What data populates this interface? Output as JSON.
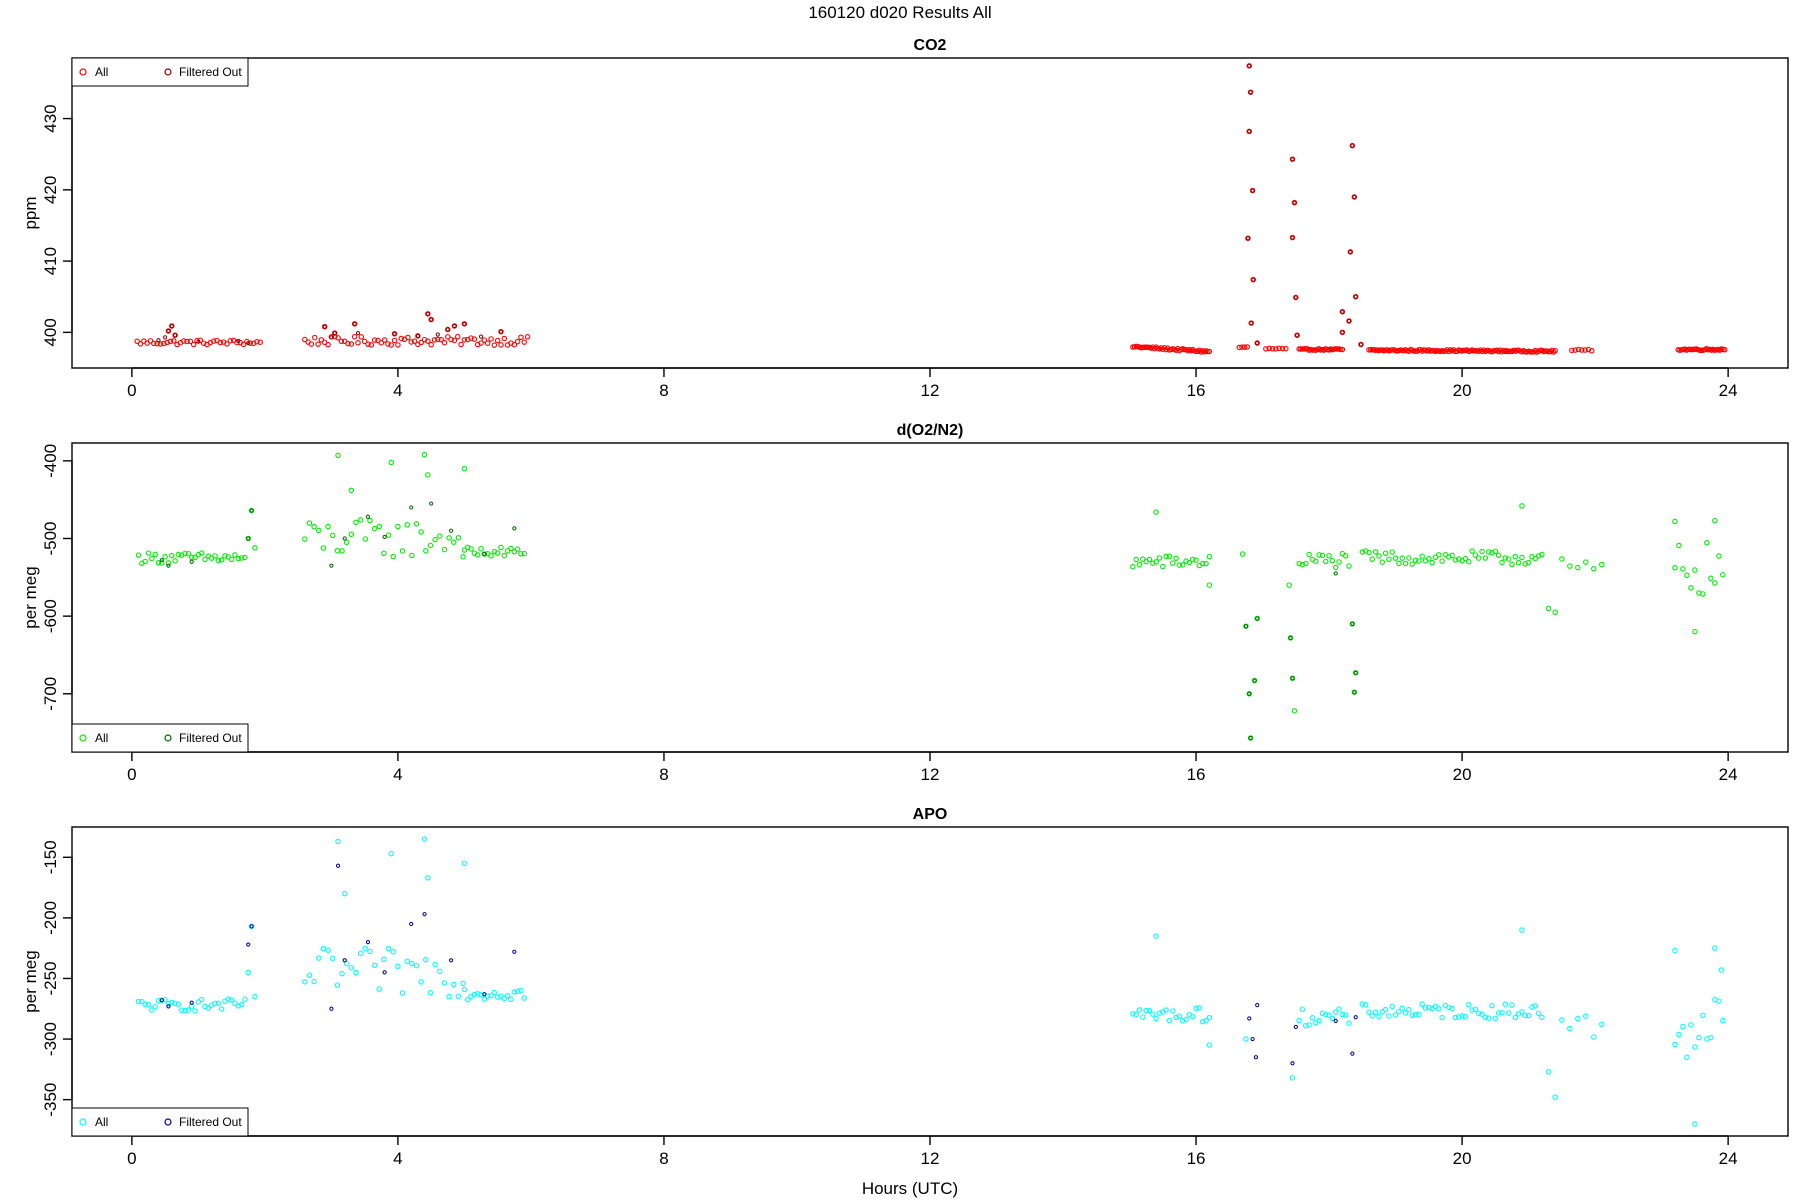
{
  "figure_title": "160120   d020   Results All",
  "xlabel": "Hours (UTC)",
  "legend_labels": [
    "All",
    "Filtered Out"
  ],
  "chart_data": [
    {
      "type": "scatter",
      "title": "CO2",
      "ylabel": "ppm",
      "xlim": [
        -0.9,
        24.9
      ],
      "ylim": [
        395,
        438.5
      ],
      "xticks": [
        0,
        4,
        8,
        12,
        16,
        20,
        24
      ],
      "yticks": [
        400,
        410,
        420,
        430
      ],
      "grid": false,
      "legend_position": "top-left",
      "colors": {
        "all": "#ff0000",
        "filtered": "#8b0000"
      },
      "segments_all": [
        {
          "from": 0.08,
          "to": 1.95,
          "step": 0.05,
          "base": 398.6,
          "jitter": 0.35
        },
        {
          "from": 2.6,
          "to": 5.95,
          "step": 0.05,
          "base": 398.8,
          "jitter": 0.6
        },
        {
          "from": 15.05,
          "to": 16.2,
          "step": 0.025,
          "base": 398.0,
          "slope": -0.7,
          "jitter": 0.15
        },
        {
          "from": 16.65,
          "to": 16.8,
          "step": 0.04,
          "base": 397.9,
          "jitter": 0.1
        },
        {
          "from": 17.05,
          "to": 17.35,
          "step": 0.05,
          "base": 397.7,
          "jitter": 0.1
        },
        {
          "from": 17.55,
          "to": 18.2,
          "step": 0.025,
          "base": 397.6,
          "jitter": 0.1
        },
        {
          "from": 18.6,
          "to": 21.4,
          "step": 0.025,
          "base": 397.5,
          "slope": -0.15,
          "jitter": 0.12
        },
        {
          "from": 21.65,
          "to": 21.95,
          "step": 0.05,
          "base": 397.5,
          "jitter": 0.1
        },
        {
          "from": 23.25,
          "to": 23.95,
          "step": 0.025,
          "base": 397.6,
          "jitter": 0.12
        }
      ],
      "points_all": [
        {
          "x": 0.55,
          "y": 400.2
        },
        {
          "x": 0.6,
          "y": 400.9
        },
        {
          "x": 0.65,
          "y": 399.6
        },
        {
          "x": 2.9,
          "y": 400.8
        },
        {
          "x": 3.05,
          "y": 399.9
        },
        {
          "x": 3.35,
          "y": 401.2
        },
        {
          "x": 3.95,
          "y": 399.8
        },
        {
          "x": 4.3,
          "y": 399.5
        },
        {
          "x": 4.45,
          "y": 402.6
        },
        {
          "x": 4.5,
          "y": 401.8
        },
        {
          "x": 4.75,
          "y": 400.4
        },
        {
          "x": 4.85,
          "y": 400.9
        },
        {
          "x": 5.0,
          "y": 401.2
        },
        {
          "x": 5.55,
          "y": 400.1
        },
        {
          "x": 16.8,
          "y": 437.4
        },
        {
          "x": 16.82,
          "y": 433.7
        },
        {
          "x": 16.8,
          "y": 428.2
        },
        {
          "x": 16.85,
          "y": 419.9
        },
        {
          "x": 16.78,
          "y": 413.2
        },
        {
          "x": 16.86,
          "y": 407.4
        },
        {
          "x": 16.83,
          "y": 401.3
        },
        {
          "x": 16.92,
          "y": 398.5
        },
        {
          "x": 17.45,
          "y": 424.3
        },
        {
          "x": 17.48,
          "y": 418.2
        },
        {
          "x": 17.45,
          "y": 413.3
        },
        {
          "x": 17.5,
          "y": 404.9
        },
        {
          "x": 17.52,
          "y": 399.6
        },
        {
          "x": 18.35,
          "y": 426.2
        },
        {
          "x": 18.38,
          "y": 419.0
        },
        {
          "x": 18.32,
          "y": 411.3
        },
        {
          "x": 18.4,
          "y": 405.0
        },
        {
          "x": 18.2,
          "y": 402.9
        },
        {
          "x": 18.2,
          "y": 400.0
        },
        {
          "x": 18.3,
          "y": 401.6
        },
        {
          "x": 18.48,
          "y": 398.3
        }
      ],
      "points_filtered": [
        {
          "x": 0.4,
          "y": 398.9
        },
        {
          "x": 0.5,
          "y": 399.3
        },
        {
          "x": 0.55,
          "y": 400.2
        },
        {
          "x": 0.6,
          "y": 400.9
        },
        {
          "x": 0.65,
          "y": 399.6
        },
        {
          "x": 1.0,
          "y": 398.7
        },
        {
          "x": 1.6,
          "y": 398.8
        },
        {
          "x": 1.75,
          "y": 398.5
        },
        {
          "x": 2.9,
          "y": 400.8
        },
        {
          "x": 3.0,
          "y": 399.3
        },
        {
          "x": 3.05,
          "y": 399.9
        },
        {
          "x": 3.35,
          "y": 401.2
        },
        {
          "x": 3.4,
          "y": 399.9
        },
        {
          "x": 3.95,
          "y": 399.8
        },
        {
          "x": 4.3,
          "y": 399.5
        },
        {
          "x": 4.45,
          "y": 402.6
        },
        {
          "x": 4.5,
          "y": 401.8
        },
        {
          "x": 4.6,
          "y": 399.7
        },
        {
          "x": 4.75,
          "y": 400.4
        },
        {
          "x": 4.85,
          "y": 400.9
        },
        {
          "x": 5.0,
          "y": 401.2
        },
        {
          "x": 5.25,
          "y": 399.4
        },
        {
          "x": 5.55,
          "y": 400.1
        },
        {
          "x": 16.8,
          "y": 437.4
        },
        {
          "x": 16.82,
          "y": 433.7
        },
        {
          "x": 16.8,
          "y": 428.2
        },
        {
          "x": 16.85,
          "y": 419.9
        },
        {
          "x": 16.78,
          "y": 413.2
        },
        {
          "x": 16.86,
          "y": 407.4
        },
        {
          "x": 16.83,
          "y": 401.3
        },
        {
          "x": 16.92,
          "y": 398.5
        },
        {
          "x": 17.45,
          "y": 424.3
        },
        {
          "x": 17.48,
          "y": 418.2
        },
        {
          "x": 17.45,
          "y": 413.3
        },
        {
          "x": 17.5,
          "y": 404.9
        },
        {
          "x": 17.52,
          "y": 399.6
        },
        {
          "x": 18.35,
          "y": 426.2
        },
        {
          "x": 18.38,
          "y": 419.0
        },
        {
          "x": 18.32,
          "y": 411.3
        },
        {
          "x": 18.4,
          "y": 405.0
        },
        {
          "x": 18.2,
          "y": 402.9
        },
        {
          "x": 18.2,
          "y": 400.0
        },
        {
          "x": 18.3,
          "y": 401.6
        },
        {
          "x": 18.48,
          "y": 398.3
        }
      ]
    },
    {
      "type": "scatter",
      "title": "d(O2/N2)",
      "ylabel": "per meg",
      "xlim": [
        -0.9,
        24.9
      ],
      "ylim": [
        -775,
        -377
      ],
      "xticks": [
        0,
        4,
        8,
        12,
        16,
        20,
        24
      ],
      "yticks": [
        -700,
        -600,
        -500,
        -400
      ],
      "grid": false,
      "legend_position": "bottom-left",
      "colors": {
        "all": "#00ee00",
        "filtered": "#006400"
      },
      "segments_all": [
        {
          "from": 0.1,
          "to": 1.7,
          "step": 0.05,
          "base": -525,
          "jitter": 7
        },
        {
          "from": 2.6,
          "to": 5.0,
          "step": 0.07,
          "base": -500,
          "jitter": 25
        },
        {
          "from": 5.0,
          "to": 5.9,
          "step": 0.05,
          "base": -518,
          "jitter": 7
        },
        {
          "from": 15.05,
          "to": 16.2,
          "step": 0.05,
          "base": -530,
          "jitter": 8
        },
        {
          "from": 17.55,
          "to": 18.3,
          "step": 0.05,
          "base": -528,
          "jitter": 10
        },
        {
          "from": 18.5,
          "to": 21.2,
          "step": 0.05,
          "base": -525,
          "jitter": 9
        },
        {
          "from": 21.5,
          "to": 22.1,
          "step": 0.12,
          "base": -540,
          "jitter": 15
        },
        {
          "from": 23.2,
          "to": 23.95,
          "step": 0.06,
          "base": -540,
          "jitter": 35
        }
      ],
      "points_all": [
        {
          "x": 1.75,
          "y": -500
        },
        {
          "x": 1.8,
          "y": -464
        },
        {
          "x": 1.85,
          "y": -512
        },
        {
          "x": 3.1,
          "y": -393
        },
        {
          "x": 3.9,
          "y": -402
        },
        {
          "x": 4.4,
          "y": -392
        },
        {
          "x": 4.45,
          "y": -418
        },
        {
          "x": 3.3,
          "y": -438
        },
        {
          "x": 5.0,
          "y": -410
        },
        {
          "x": 15.4,
          "y": -466
        },
        {
          "x": 16.2,
          "y": -560
        },
        {
          "x": 16.7,
          "y": -520
        },
        {
          "x": 16.75,
          "y": -613
        },
        {
          "x": 16.8,
          "y": -700
        },
        {
          "x": 16.82,
          "y": -757
        },
        {
          "x": 16.88,
          "y": -683
        },
        {
          "x": 16.92,
          "y": -603
        },
        {
          "x": 17.4,
          "y": -560
        },
        {
          "x": 17.42,
          "y": -628
        },
        {
          "x": 17.45,
          "y": -680
        },
        {
          "x": 17.48,
          "y": -722
        },
        {
          "x": 18.35,
          "y": -610
        },
        {
          "x": 18.4,
          "y": -673
        },
        {
          "x": 18.38,
          "y": -698
        },
        {
          "x": 20.9,
          "y": -458
        },
        {
          "x": 21.3,
          "y": -590
        },
        {
          "x": 21.4,
          "y": -595
        },
        {
          "x": 23.2,
          "y": -478
        },
        {
          "x": 23.5,
          "y": -620
        },
        {
          "x": 23.8,
          "y": -477
        }
      ],
      "points_filtered": [
        {
          "x": 0.45,
          "y": -528
        },
        {
          "x": 0.55,
          "y": -535
        },
        {
          "x": 0.9,
          "y": -530
        },
        {
          "x": 1.75,
          "y": -500
        },
        {
          "x": 1.8,
          "y": -464
        },
        {
          "x": 3.0,
          "y": -535
        },
        {
          "x": 3.2,
          "y": -500
        },
        {
          "x": 3.55,
          "y": -472
        },
        {
          "x": 3.8,
          "y": -498
        },
        {
          "x": 4.2,
          "y": -460
        },
        {
          "x": 4.5,
          "y": -455
        },
        {
          "x": 4.8,
          "y": -490
        },
        {
          "x": 5.3,
          "y": -520
        },
        {
          "x": 5.75,
          "y": -487
        },
        {
          "x": 16.75,
          "y": -613
        },
        {
          "x": 16.8,
          "y": -700
        },
        {
          "x": 16.82,
          "y": -757
        },
        {
          "x": 16.88,
          "y": -683
        },
        {
          "x": 16.92,
          "y": -603
        },
        {
          "x": 17.45,
          "y": -680
        },
        {
          "x": 17.42,
          "y": -628
        },
        {
          "x": 18.35,
          "y": -610
        },
        {
          "x": 18.4,
          "y": -673
        },
        {
          "x": 18.38,
          "y": -698
        },
        {
          "x": 18.1,
          "y": -545
        }
      ]
    },
    {
      "type": "scatter",
      "title": "APO",
      "ylabel": "per meg",
      "xlim": [
        -0.9,
        24.9
      ],
      "ylim": [
        -380,
        -125
      ],
      "xticks": [
        0,
        4,
        8,
        12,
        16,
        20,
        24
      ],
      "yticks": [
        -350,
        -300,
        -250,
        -200,
        -150
      ],
      "grid": false,
      "legend_position": "bottom-left",
      "colors": {
        "all": "#00ffff",
        "filtered": "#00008b"
      },
      "segments_all": [
        {
          "from": 0.1,
          "to": 1.7,
          "step": 0.05,
          "base": -272,
          "jitter": 5
        },
        {
          "from": 2.6,
          "to": 5.0,
          "step": 0.07,
          "base": -245,
          "jitter": 20
        },
        {
          "from": 5.0,
          "to": 5.9,
          "step": 0.05,
          "base": -262,
          "jitter": 6
        },
        {
          "from": 15.05,
          "to": 16.2,
          "step": 0.05,
          "base": -280,
          "jitter": 6
        },
        {
          "from": 17.55,
          "to": 18.3,
          "step": 0.05,
          "base": -282,
          "jitter": 7
        },
        {
          "from": 18.5,
          "to": 21.2,
          "step": 0.05,
          "base": -277,
          "jitter": 6
        },
        {
          "from": 21.5,
          "to": 22.1,
          "step": 0.12,
          "base": -290,
          "jitter": 12
        },
        {
          "from": 23.2,
          "to": 23.95,
          "step": 0.06,
          "base": -290,
          "jitter": 30
        }
      ],
      "points_all": [
        {
          "x": 1.75,
          "y": -245
        },
        {
          "x": 1.8,
          "y": -207
        },
        {
          "x": 1.85,
          "y": -265
        },
        {
          "x": 3.1,
          "y": -137
        },
        {
          "x": 3.9,
          "y": -147
        },
        {
          "x": 4.4,
          "y": -135
        },
        {
          "x": 4.45,
          "y": -167
        },
        {
          "x": 3.2,
          "y": -180
        },
        {
          "x": 5.0,
          "y": -155
        },
        {
          "x": 15.4,
          "y": -215
        },
        {
          "x": 16.2,
          "y": -305
        },
        {
          "x": 16.75,
          "y": -300
        },
        {
          "x": 17.45,
          "y": -332
        },
        {
          "x": 20.9,
          "y": -210
        },
        {
          "x": 21.3,
          "y": -327
        },
        {
          "x": 21.4,
          "y": -348
        },
        {
          "x": 23.2,
          "y": -227
        },
        {
          "x": 23.5,
          "y": -370
        },
        {
          "x": 23.8,
          "y": -225
        },
        {
          "x": 23.9,
          "y": -243
        }
      ],
      "points_filtered": [
        {
          "x": 0.45,
          "y": -268
        },
        {
          "x": 0.55,
          "y": -273
        },
        {
          "x": 0.9,
          "y": -270
        },
        {
          "x": 1.75,
          "y": -222
        },
        {
          "x": 1.8,
          "y": -207
        },
        {
          "x": 3.0,
          "y": -275
        },
        {
          "x": 3.1,
          "y": -157
        },
        {
          "x": 3.2,
          "y": -235
        },
        {
          "x": 3.55,
          "y": -220
        },
        {
          "x": 3.8,
          "y": -245
        },
        {
          "x": 4.2,
          "y": -205
        },
        {
          "x": 4.4,
          "y": -197
        },
        {
          "x": 4.8,
          "y": -235
        },
        {
          "x": 5.3,
          "y": -263
        },
        {
          "x": 5.75,
          "y": -228
        },
        {
          "x": 16.8,
          "y": -283
        },
        {
          "x": 16.85,
          "y": -300
        },
        {
          "x": 16.9,
          "y": -315
        },
        {
          "x": 16.92,
          "y": -272
        },
        {
          "x": 17.45,
          "y": -320
        },
        {
          "x": 17.5,
          "y": -290
        },
        {
          "x": 18.35,
          "y": -312
        },
        {
          "x": 18.4,
          "y": -282
        },
        {
          "x": 18.1,
          "y": -285
        }
      ]
    }
  ]
}
